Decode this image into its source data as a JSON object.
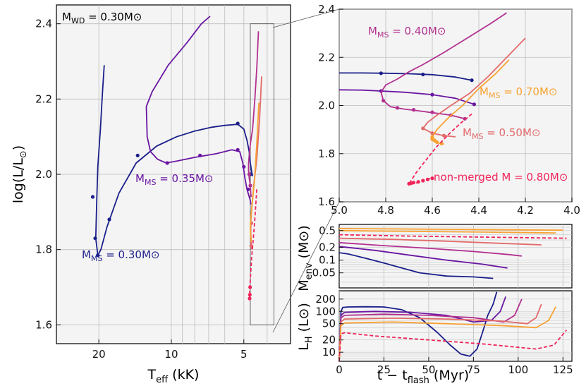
{
  "chart_data": [
    {
      "id": "hrd_main",
      "type": "line",
      "title": "M_WD = 0.30M⊙",
      "title_parts": {
        "base": "M",
        "sub": "WD",
        "rest": " = 0.30M",
        "sym": "⊙"
      },
      "xscale": "log",
      "x_reversed": true,
      "xlim": [
        30,
        3.2
      ],
      "ylim": [
        1.55,
        2.45
      ],
      "xticks": [
        20,
        10,
        5
      ],
      "xtick_labels": [
        "20",
        "10",
        "5"
      ],
      "yticks": [
        1.6,
        1.8,
        2.0,
        2.2,
        2.4
      ],
      "ytick_labels": [
        "1.6",
        "1.8",
        "2.0",
        "2.2",
        "2.4"
      ],
      "xlabel": {
        "base": "T",
        "sub": "eff",
        "rest": " (kK)"
      },
      "ylabel": {
        "base": "log(L/L",
        "sub": "⊙",
        "rest": ")"
      },
      "zoom_box": {
        "x": [
          4.7,
          3.75
        ],
        "y": [
          1.6,
          2.4
        ]
      },
      "series": [
        {
          "name": "0.30",
          "label": {
            "base": "M",
            "sub": "MS",
            "rest": " = 0.30M",
            "sym": "⊙"
          },
          "color": "#1b1f8a",
          "x": [
            19.0,
            19.3,
            19.7,
            20.2,
            20.4,
            20.6,
            20.2,
            19.6,
            18.5,
            16.5,
            14.0,
            11.5,
            9.5,
            8.0,
            6.8,
            6.0,
            5.3,
            5.0,
            4.85,
            4.75,
            4.7,
            4.65,
            4.6
          ],
          "y": [
            2.29,
            2.22,
            2.12,
            2.02,
            1.93,
            1.83,
            1.785,
            1.8,
            1.86,
            1.95,
            2.03,
            2.075,
            2.1,
            2.115,
            2.125,
            2.13,
            2.133,
            2.12,
            2.09,
            2.06,
            2.03,
            2.01,
            1.995
          ],
          "markers_x": [
            21.2,
            20.7,
            20.2,
            18.1,
            13.8,
            5.3,
            4.7
          ],
          "markers_y": [
            1.94,
            1.83,
            1.785,
            1.88,
            2.05,
            2.135,
            2.0
          ]
        },
        {
          "name": "0.35",
          "label": {
            "base": "M",
            "sub": "MS",
            "rest": " = 0.35M",
            "sym": "⊙"
          },
          "color": "#6a16a3",
          "x": [
            6.9,
            7.5,
            8.6,
            10.3,
            12.0,
            12.7,
            12.6,
            12.2,
            11.4,
            10.5,
            9.5,
            8.0,
            6.5,
            5.6,
            5.2,
            5.05,
            4.95,
            4.85,
            4.75,
            4.7,
            4.68
          ],
          "y": [
            2.42,
            2.4,
            2.35,
            2.29,
            2.22,
            2.18,
            2.1,
            2.06,
            2.04,
            2.03,
            2.035,
            2.045,
            2.055,
            2.065,
            2.06,
            2.03,
            1.99,
            1.96,
            1.94,
            1.93,
            1.92
          ],
          "markers_x": [
            10.4,
            7.6,
            5.3,
            5.0,
            4.8
          ],
          "markers_y": [
            2.03,
            2.05,
            2.065,
            2.02,
            1.96
          ]
        },
        {
          "name": "0.40",
          "label": {
            "base": "M",
            "sub": "MS",
            "rest": " = 0.40M",
            "sym": "⊙"
          },
          "color": "#b2308f",
          "x": [
            4.35,
            4.42,
            4.5,
            4.6,
            4.7,
            4.75,
            4.78,
            4.78,
            4.75,
            4.7,
            4.68,
            4.66
          ],
          "y": [
            2.38,
            2.28,
            2.2,
            2.12,
            2.08,
            2.05,
            2.03,
            2.01,
            1.99,
            1.97,
            1.95,
            1.94
          ],
          "markers_x": [
            4.75,
            4.7
          ],
          "markers_y": [
            2.0,
            1.97
          ]
        },
        {
          "name": "0.50",
          "label": {
            "base": "M",
            "sub": "MS",
            "rest": " = 0.50M",
            "sym": "⊙"
          },
          "color": "#e36a6a",
          "x": [
            4.22,
            4.3,
            4.42,
            4.55,
            4.62,
            4.67,
            4.68,
            4.67,
            4.66,
            4.65
          ],
          "y": [
            2.26,
            2.15,
            2.04,
            1.97,
            1.92,
            1.88,
            1.85,
            1.83,
            1.81,
            1.8
          ],
          "markers_x": [
            4.65,
            4.66
          ],
          "markers_y": [
            1.87,
            1.81
          ]
        },
        {
          "name": "0.70",
          "label": {
            "base": "M",
            "sub": "MS",
            "rest": " = 0.70M",
            "sym": "⊙"
          },
          "color": "#f7a233",
          "x": [
            4.33,
            4.42,
            4.52,
            4.62,
            4.68,
            4.7,
            4.69,
            4.67,
            4.66
          ],
          "y": [
            2.19,
            2.08,
            1.98,
            1.92,
            1.88,
            1.86,
            1.84,
            1.83,
            1.82
          ],
          "markers_x": [],
          "markers_y": []
        },
        {
          "name": "0.80",
          "label": {
            "base": "non-merged M",
            "sub": "",
            "rest": " = 0.80M",
            "sym": "⊙"
          },
          "color": "#f0245a",
          "dashed": true,
          "x": [
            4.42,
            4.5,
            4.58,
            4.64,
            4.69,
            4.72,
            4.73
          ],
          "y": [
            1.96,
            1.88,
            1.82,
            1.78,
            1.73,
            1.7,
            1.67
          ],
          "markers_x": [
            4.71,
            4.72,
            4.73
          ],
          "markers_y": [
            1.7,
            1.68,
            1.67
          ]
        }
      ]
    },
    {
      "id": "hrd_zoom",
      "type": "line",
      "xscale": "linear",
      "x_reversed": true,
      "xlim": [
        5.0,
        4.0
      ],
      "ylim": [
        1.6,
        2.4
      ],
      "xticks": [
        5.0,
        4.8,
        4.6,
        4.4,
        4.2,
        4.0
      ],
      "xtick_labels": [
        "5.0",
        "4.8",
        "4.6",
        "4.4",
        "4.2",
        "4.0"
      ],
      "yticks": [
        1.6,
        1.8,
        2.0,
        2.2,
        2.4
      ],
      "ytick_labels": [
        "1.6",
        "1.8",
        "2.0",
        "2.2",
        "2.4"
      ],
      "series": [
        {
          "name": "0.30",
          "color": "#1b1f8a",
          "x": [
            5.0,
            4.9,
            4.8,
            4.7,
            4.6,
            4.5,
            4.43
          ],
          "y": [
            2.135,
            2.135,
            2.134,
            2.132,
            2.128,
            2.118,
            2.105
          ],
          "markers_x": [
            4.82,
            4.64,
            4.43
          ],
          "markers_y": [
            2.134,
            2.129,
            2.105
          ]
        },
        {
          "name": "0.35",
          "color": "#6a16a3",
          "x": [
            5.0,
            4.9,
            4.82,
            4.72,
            4.6,
            4.5,
            4.42
          ],
          "y": [
            2.065,
            2.064,
            2.06,
            2.055,
            2.045,
            2.03,
            2.005
          ],
          "markers_x": [
            4.82,
            4.6,
            4.42
          ],
          "markers_y": [
            2.06,
            2.045,
            2.005
          ]
        },
        {
          "name": "0.40",
          "color": "#b2308f",
          "x": [
            4.28,
            4.35,
            4.45,
            4.55,
            4.64,
            4.7,
            4.75,
            4.8,
            4.82,
            4.81,
            4.78,
            4.72,
            4.66,
            4.6,
            4.52,
            4.46
          ],
          "y": [
            2.385,
            2.34,
            2.28,
            2.22,
            2.17,
            2.14,
            2.11,
            2.085,
            2.055,
            2.02,
            1.995,
            1.985,
            1.978,
            1.97,
            1.96,
            1.945
          ],
          "markers_x": [
            4.81,
            4.75,
            4.68,
            4.6,
            4.52,
            4.46
          ],
          "markers_y": [
            2.02,
            1.99,
            1.982,
            1.972,
            1.96,
            1.945
          ]
        },
        {
          "name": "0.50",
          "color": "#e36a6a",
          "x": [
            4.2,
            4.28,
            4.36,
            4.44,
            4.52,
            4.58,
            4.62,
            4.64,
            4.6,
            4.55,
            4.5
          ],
          "y": [
            2.28,
            2.2,
            2.12,
            2.05,
            2.0,
            1.96,
            1.93,
            1.905,
            1.885,
            1.875,
            1.87
          ],
          "markers_x": [
            4.64,
            4.6,
            4.55
          ],
          "markers_y": [
            1.905,
            1.885,
            1.875
          ]
        },
        {
          "name": "0.70",
          "color": "#f7a233",
          "x": [
            4.27,
            4.33,
            4.4,
            4.47,
            4.53,
            4.58,
            4.6,
            4.6,
            4.58,
            4.55
          ],
          "y": [
            2.19,
            2.13,
            2.07,
            2.0,
            1.95,
            1.9,
            1.87,
            1.855,
            1.845,
            1.84
          ],
          "markers_x": [
            4.6,
            4.6,
            4.6,
            4.59,
            4.58,
            4.56
          ],
          "markers_y": [
            1.87,
            1.865,
            1.86,
            1.855,
            1.848,
            1.842
          ]
        },
        {
          "name": "0.80",
          "color": "#f0245a",
          "dashed": true,
          "x": [
            4.43,
            4.48,
            4.53,
            4.58,
            4.63,
            4.67,
            4.7,
            4.69,
            4.66,
            4.63,
            4.6
          ],
          "y": [
            1.965,
            1.925,
            1.88,
            1.83,
            1.77,
            1.72,
            1.675,
            1.675,
            1.68,
            1.69,
            1.7
          ],
          "markers_x": [
            4.7,
            4.69,
            4.68,
            4.66,
            4.64,
            4.62,
            4.6
          ],
          "markers_y": [
            1.675,
            1.677,
            1.68,
            1.683,
            1.688,
            1.693,
            1.698
          ]
        }
      ]
    },
    {
      "id": "menv",
      "type": "line",
      "yscale": "log",
      "xlim": [
        0,
        130
      ],
      "ylim": [
        0.022,
        0.7
      ],
      "yticks": [
        0.05,
        0.1,
        0.2,
        0.5
      ],
      "ytick_labels": [
        "0.05",
        "0.1",
        "0.2",
        "0.5"
      ],
      "ylabel": {
        "base": "M",
        "sub": "env",
        "rest": " (M",
        "sym": "⊙",
        "tail": ")"
      },
      "series": [
        {
          "name": "0.30",
          "color": "#1b1f8a",
          "x": [
            0,
            5,
            15,
            25,
            35,
            45,
            60,
            75,
            86
          ],
          "y": [
            0.15,
            0.14,
            0.11,
            0.085,
            0.065,
            0.05,
            0.042,
            0.04,
            0.037
          ]
        },
        {
          "name": "0.35",
          "color": "#6a16a3",
          "x": [
            0,
            20,
            40,
            60,
            80,
            94
          ],
          "y": [
            0.21,
            0.17,
            0.13,
            0.1,
            0.08,
            0.065
          ]
        },
        {
          "name": "0.40",
          "color": "#b2308f",
          "x": [
            0,
            25,
            50,
            75,
            95,
            102
          ],
          "y": [
            0.26,
            0.22,
            0.19,
            0.16,
            0.135,
            0.125
          ]
        },
        {
          "name": "0.50",
          "color": "#e36a6a",
          "x": [
            0,
            30,
            60,
            90,
            113
          ],
          "y": [
            0.33,
            0.31,
            0.28,
            0.25,
            0.23
          ]
        },
        {
          "name": "0.80",
          "color": "#f0245a",
          "dashed": true,
          "x": [
            0,
            40,
            80,
            127
          ],
          "y": [
            0.4,
            0.37,
            0.35,
            0.33
          ]
        },
        {
          "name": "0.70",
          "color": "#f7a233",
          "x": [
            0,
            40,
            80,
            121
          ],
          "y": [
            0.5,
            0.48,
            0.46,
            0.44
          ]
        },
        {
          "name": "0.75",
          "color": "#f7a233",
          "x": [
            0,
            50,
            100,
            125
          ],
          "y": [
            0.56,
            0.54,
            0.52,
            0.51
          ]
        }
      ]
    },
    {
      "id": "lh",
      "type": "line",
      "yscale": "log",
      "xlim": [
        0,
        130
      ],
      "ylim": [
        6,
        320
      ],
      "xticks": [
        0,
        25,
        50,
        75,
        100,
        125
      ],
      "xtick_labels": [
        "0",
        "25",
        "50",
        "75",
        "100",
        "125"
      ],
      "yticks": [
        10,
        20,
        50,
        100,
        200
      ],
      "ytick_labels": [
        "10",
        "20",
        "50",
        "100",
        "200"
      ],
      "xlabel": {
        "base": "t − t",
        "sub": "flash",
        "rest": " (Myr)"
      },
      "ylabel": {
        "base": "L",
        "sub": "H",
        "rest": " (L",
        "sym": "⊙",
        "tail": ")"
      },
      "series": [
        {
          "name": "0.30",
          "color": "#1b1f8a",
          "x": [
            0,
            1,
            2,
            5,
            15,
            25,
            35,
            45,
            55,
            62,
            68,
            73,
            77,
            80,
            83,
            86,
            88
          ],
          "y": [
            6,
            100,
            125,
            128,
            130,
            128,
            110,
            70,
            30,
            15,
            9,
            8,
            12,
            30,
            80,
            150,
            300
          ]
        },
        {
          "name": "0.35",
          "color": "#6a16a3",
          "x": [
            0,
            1,
            3,
            20,
            40,
            60,
            75,
            85,
            90,
            93
          ],
          "y": [
            6,
            80,
            95,
            100,
            95,
            80,
            55,
            60,
            100,
            230
          ]
        },
        {
          "name": "0.40",
          "color": "#b2308f",
          "x": [
            0,
            1,
            3,
            25,
            50,
            75,
            92,
            98,
            102
          ],
          "y": [
            6,
            70,
            80,
            85,
            80,
            70,
            55,
            80,
            200
          ]
        },
        {
          "name": "0.50",
          "color": "#e36a6a",
          "x": [
            0,
            1,
            3,
            30,
            60,
            90,
            105,
            110,
            113
          ],
          "y": [
            6,
            55,
            65,
            68,
            65,
            58,
            50,
            70,
            150
          ]
        },
        {
          "name": "0.70",
          "color": "#f7a233",
          "x": [
            0,
            1,
            3,
            30,
            60,
            90,
            110,
            117,
            121
          ],
          "y": [
            6,
            45,
            52,
            55,
            50,
            45,
            40,
            60,
            130
          ]
        },
        {
          "name": "0.80",
          "color": "#f0245a",
          "dashed": true,
          "x": [
            0,
            1,
            3,
            20,
            50,
            80,
            110,
            120,
            127
          ],
          "y": [
            6,
            28,
            30,
            25,
            20,
            16,
            12,
            15,
            35
          ]
        }
      ]
    }
  ],
  "annotations": {
    "panel_a_label_030": {
      "base": "M",
      "sub": "MS",
      "rest": " = 0.30M",
      "sym": "⊙"
    },
    "panel_a_label_035": {
      "base": "M",
      "sub": "MS",
      "rest": " = 0.35M",
      "sym": "⊙"
    }
  }
}
